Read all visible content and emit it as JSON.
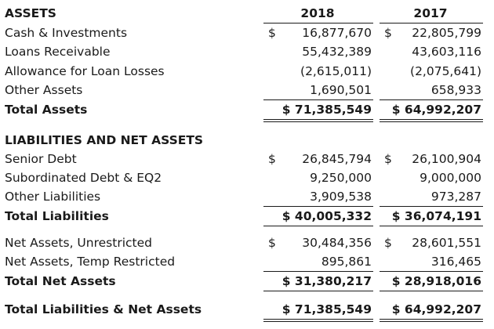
{
  "header": {
    "assets_title": "ASSETS",
    "year_2018": "2018",
    "year_2017": "2017"
  },
  "assets": {
    "cash": {
      "label": "Cash & Investments",
      "cur_2018": "$",
      "v2018": "16,877,670",
      "cur_2017": "$",
      "v2017": "22,805,799"
    },
    "loans": {
      "label": "Loans Receivable",
      "v2018": "55,432,389",
      "v2017": "43,603,116"
    },
    "allowance": {
      "label": "Allowance for Loan Losses",
      "v2018": "(2,615,011)",
      "v2017": "(2,075,641)"
    },
    "other": {
      "label": "Other Assets",
      "v2018": "1,690,501",
      "v2017": "658,933"
    },
    "total": {
      "label": "Total Assets",
      "v2018": "$ 71,385,549",
      "v2017": "$ 64,992,207"
    }
  },
  "liabilities": {
    "title": "LIABILITIES AND NET ASSETS",
    "senior": {
      "label": "Senior Debt",
      "cur_2018": "$",
      "v2018": "26,845,794",
      "cur_2017": "$",
      "v2017": "26,100,904"
    },
    "subordinated": {
      "label": "Subordinated Debt & EQ2",
      "v2018": "9,250,000",
      "v2017": "9,000,000"
    },
    "other": {
      "label": "Other Liabilities",
      "v2018": "3,909,538",
      "v2017": "973,287"
    },
    "total": {
      "label": "Total Liabilities",
      "v2018": "$ 40,005,332",
      "v2017": "$ 36,074,191"
    }
  },
  "net_assets": {
    "unrestricted": {
      "label": "Net Assets, Unrestricted",
      "cur_2018": "$",
      "v2018": "30,484,356",
      "cur_2017": "$",
      "v2017": "28,601,551"
    },
    "temp": {
      "label": "Net Assets, Temp Restricted",
      "v2018": "895,861",
      "v2017": "316,465"
    },
    "total": {
      "label": "Total Net Assets",
      "v2018": "$ 31,380,217",
      "v2017": "$ 28,918,016"
    }
  },
  "grand_total": {
    "label": "Total Liabilities & Net Assets",
    "v2018": "$ 71,385,549",
    "v2017": "$ 64,992,207"
  }
}
